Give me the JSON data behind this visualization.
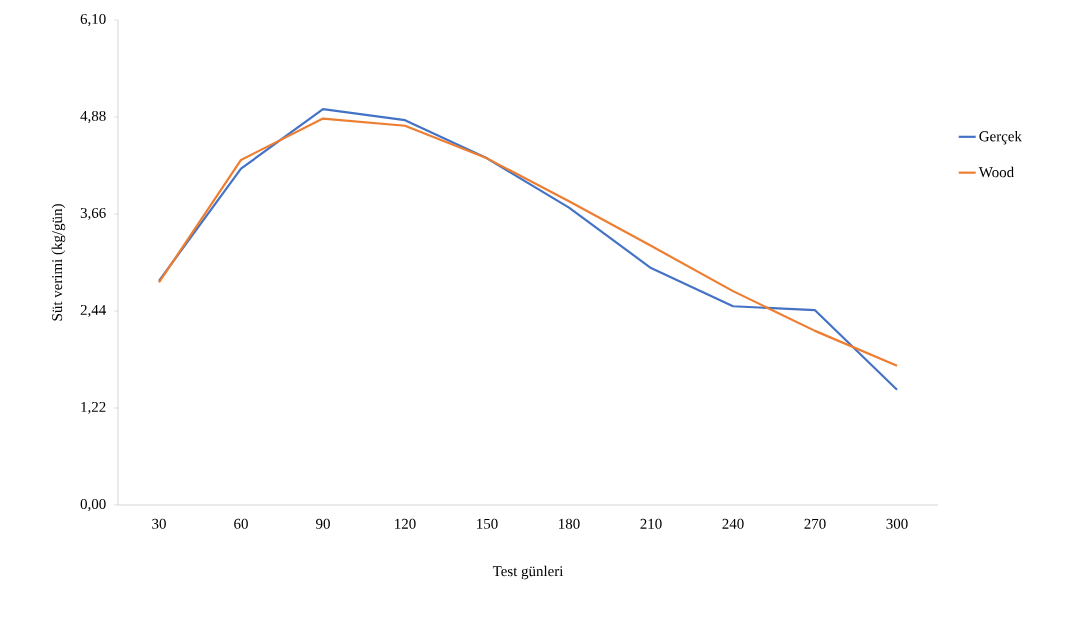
{
  "chart_data": {
    "type": "line",
    "xlabel": "Test günleri",
    "ylabel": "Süt verimi  (kg/gün)",
    "categories": [
      "30",
      "60",
      "90",
      "120",
      "150",
      "180",
      "210",
      "240",
      "270",
      "300"
    ],
    "series": [
      {
        "name": "Gerçek",
        "color": "#4472c4",
        "values": [
          2.82,
          4.23,
          4.98,
          4.84,
          4.36,
          3.74,
          2.98,
          2.5,
          2.45,
          1.45
        ]
      },
      {
        "name": "Wood",
        "color": "#ed7d31",
        "values": [
          2.8,
          4.34,
          4.86,
          4.77,
          4.36,
          3.82,
          3.26,
          2.69,
          2.19,
          1.75
        ]
      }
    ],
    "ylim": [
      0,
      6.1
    ],
    "yticks": [
      {
        "value": 0,
        "label": "0,00"
      },
      {
        "value": 1.22,
        "label": "1,22"
      },
      {
        "value": 2.44,
        "label": "2,44"
      },
      {
        "value": 3.66,
        "label": "3,66"
      },
      {
        "value": 4.88,
        "label": "4,88"
      },
      {
        "value": 6.1,
        "label": "6,10"
      }
    ],
    "grid": false,
    "legend": "right",
    "marker": "none",
    "line_style": "solid"
  }
}
